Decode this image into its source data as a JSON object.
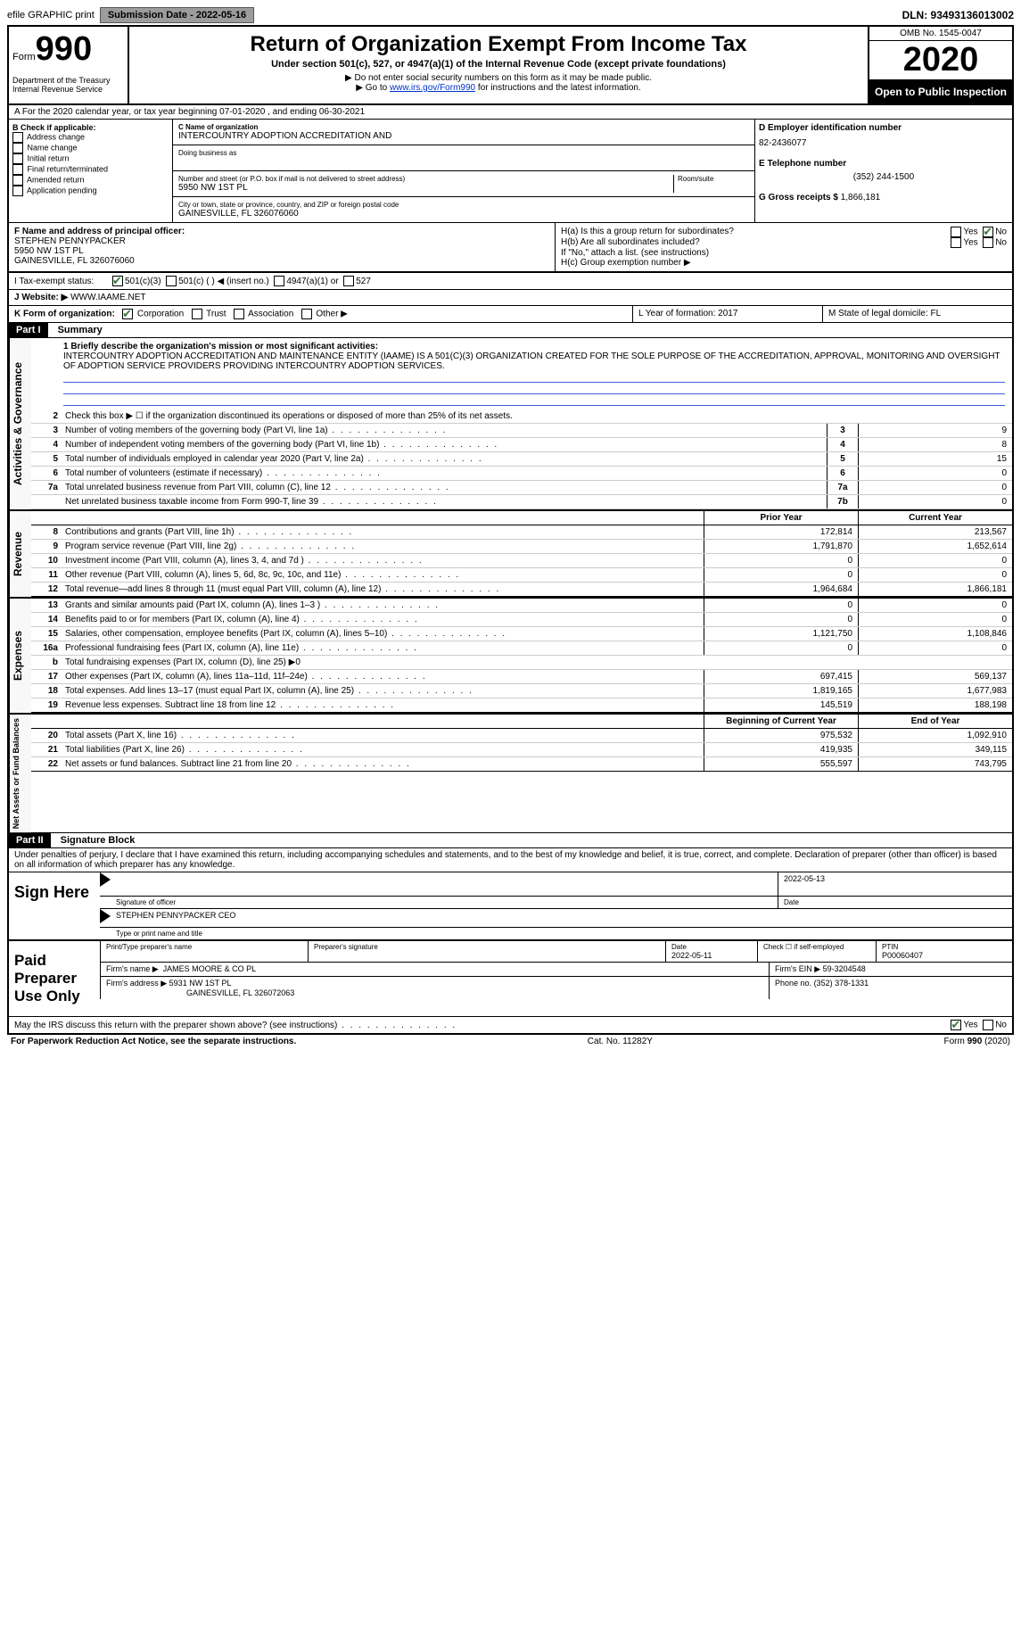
{
  "topbar": {
    "efile": "efile GRAPHIC print",
    "submission_label": "Submission Date - 2022-05-16",
    "dln_label": "DLN: 93493136013002"
  },
  "header": {
    "form_word": "Form",
    "form_number": "990",
    "dept1": "Department of the Treasury",
    "dept2": "Internal Revenue Service",
    "title": "Return of Organization Exempt From Income Tax",
    "subtitle": "Under section 501(c), 527, or 4947(a)(1) of the Internal Revenue Code (except private foundations)",
    "note1": "▶ Do not enter social security numbers on this form as it may be made public.",
    "note2_pre": "▶ Go to ",
    "note2_link": "www.irs.gov/Form990",
    "note2_post": " for instructions and the latest information.",
    "omb": "OMB No. 1545-0047",
    "year": "2020",
    "open_public": "Open to Public Inspection"
  },
  "row_a": "A For the 2020 calendar year, or tax year beginning 07-01-2020    , and ending 06-30-2021",
  "b": {
    "title": "B Check if applicable:",
    "items": [
      "Address change",
      "Name change",
      "Initial return",
      "Final return/terminated",
      "Amended return",
      "Application pending"
    ]
  },
  "c": {
    "name_label": "C Name of organization",
    "name": "INTERCOUNTRY ADOPTION ACCREDITATION AND",
    "dba_label": "Doing business as",
    "street_label": "Number and street (or P.O. box if mail is not delivered to street address)",
    "room_label": "Room/suite",
    "street": "5950 NW 1ST PL",
    "city_label": "City or town, state or province, country, and ZIP or foreign postal code",
    "city": "GAINESVILLE, FL  326076060"
  },
  "d": {
    "ein_label": "D Employer identification number",
    "ein": "82-2436077",
    "e_label": "E Telephone number",
    "phone": "(352) 244-1500",
    "g_label": "G Gross receipts $",
    "g_val": "1,866,181"
  },
  "f": {
    "label": "F  Name and address of principal officer:",
    "name": "STEPHEN PENNYPACKER",
    "addr1": "5950 NW 1ST PL",
    "addr2": "GAINESVILLE, FL  326076060"
  },
  "h": {
    "ha_label": "H(a)  Is this a group return for subordinates?",
    "hb_label": "H(b)  Are all subordinates included?",
    "hb_note": "If \"No,\" attach a list. (see instructions)",
    "hc_label": "H(c)  Group exemption number ▶",
    "yes": "Yes",
    "no": "No"
  },
  "i": {
    "label": "I  Tax-exempt status:",
    "opts": [
      "501(c)(3)",
      "501(c) (  ) ◀ (insert no.)",
      "4947(a)(1) or",
      "527"
    ]
  },
  "j": {
    "label": "J  Website: ▶",
    "val": "WWW.IAAME.NET"
  },
  "k": {
    "label": "K Form of organization:",
    "opts": [
      "Corporation",
      "Trust",
      "Association",
      "Other ▶"
    ]
  },
  "l": {
    "label": "L Year of formation: 2017",
    "m": "M State of legal domicile: FL"
  },
  "part1": {
    "label": "Part I",
    "title": "Summary",
    "mission_label": "1  Briefly describe the organization's mission or most significant activities:",
    "mission": "INTERCOUNTRY ADOPTION ACCREDITATION AND MAINTENANCE ENTITY (IAAME) IS A 501(C)(3) ORGANIZATION CREATED FOR THE SOLE PURPOSE OF THE ACCREDITATION, APPROVAL, MONITORING AND OVERSIGHT OF ADOPTION SERVICE PROVIDERS PROVIDING INTERCOUNTRY ADOPTION SERVICES.",
    "line2": "Check this box ▶ ☐ if the organization discontinued its operations or disposed of more than 25% of its net assets.",
    "gov_lines": [
      {
        "n": "3",
        "t": "Number of voting members of the governing body (Part VI, line 1a)",
        "box": "3",
        "v": "9"
      },
      {
        "n": "4",
        "t": "Number of independent voting members of the governing body (Part VI, line 1b)",
        "box": "4",
        "v": "8"
      },
      {
        "n": "5",
        "t": "Total number of individuals employed in calendar year 2020 (Part V, line 2a)",
        "box": "5",
        "v": "15"
      },
      {
        "n": "6",
        "t": "Total number of volunteers (estimate if necessary)",
        "box": "6",
        "v": "0"
      },
      {
        "n": "7a",
        "t": "Total unrelated business revenue from Part VIII, column (C), line 12",
        "box": "7a",
        "v": "0"
      },
      {
        "n": "",
        "t": "Net unrelated business taxable income from Form 990-T, line 39",
        "box": "7b",
        "v": "0"
      }
    ],
    "col_headers": {
      "prior": "Prior Year",
      "current": "Current Year"
    },
    "revenue": [
      {
        "n": "8",
        "t": "Contributions and grants (Part VIII, line 1h)",
        "p": "172,814",
        "c": "213,567"
      },
      {
        "n": "9",
        "t": "Program service revenue (Part VIII, line 2g)",
        "p": "1,791,870",
        "c": "1,652,614"
      },
      {
        "n": "10",
        "t": "Investment income (Part VIII, column (A), lines 3, 4, and 7d )",
        "p": "0",
        "c": "0"
      },
      {
        "n": "11",
        "t": "Other revenue (Part VIII, column (A), lines 5, 6d, 8c, 9c, 10c, and 11e)",
        "p": "0",
        "c": "0"
      },
      {
        "n": "12",
        "t": "Total revenue—add lines 8 through 11 (must equal Part VIII, column (A), line 12)",
        "p": "1,964,684",
        "c": "1,866,181"
      }
    ],
    "expenses": [
      {
        "n": "13",
        "t": "Grants and similar amounts paid (Part IX, column (A), lines 1–3 )",
        "p": "0",
        "c": "0"
      },
      {
        "n": "14",
        "t": "Benefits paid to or for members (Part IX, column (A), line 4)",
        "p": "0",
        "c": "0"
      },
      {
        "n": "15",
        "t": "Salaries, other compensation, employee benefits (Part IX, column (A), lines 5–10)",
        "p": "1,121,750",
        "c": "1,108,846"
      },
      {
        "n": "16a",
        "t": "Professional fundraising fees (Part IX, column (A), line 11e)",
        "p": "0",
        "c": "0"
      },
      {
        "n": "b",
        "t": "Total fundraising expenses (Part IX, column (D), line 25) ▶0",
        "p": "",
        "c": ""
      },
      {
        "n": "17",
        "t": "Other expenses (Part IX, column (A), lines 11a–11d, 11f–24e)",
        "p": "697,415",
        "c": "569,137"
      },
      {
        "n": "18",
        "t": "Total expenses. Add lines 13–17 (must equal Part IX, column (A), line 25)",
        "p": "1,819,165",
        "c": "1,677,983"
      },
      {
        "n": "19",
        "t": "Revenue less expenses. Subtract line 18 from line 12",
        "p": "145,519",
        "c": "188,198"
      }
    ],
    "net_headers": {
      "begin": "Beginning of Current Year",
      "end": "End of Year"
    },
    "net": [
      {
        "n": "20",
        "t": "Total assets (Part X, line 16)",
        "p": "975,532",
        "c": "1,092,910"
      },
      {
        "n": "21",
        "t": "Total liabilities (Part X, line 26)",
        "p": "419,935",
        "c": "349,115"
      },
      {
        "n": "22",
        "t": "Net assets or fund balances. Subtract line 21 from line 20",
        "p": "555,597",
        "c": "743,795"
      }
    ]
  },
  "side_labels": {
    "gov": "Activities & Governance",
    "rev": "Revenue",
    "exp": "Expenses",
    "net": "Net Assets or Fund Balances"
  },
  "part2": {
    "label": "Part II",
    "title": "Signature Block",
    "perjury": "Under penalties of perjury, I declare that I have examined this return, including accompanying schedules and statements, and to the best of my knowledge and belief, it is true, correct, and complete. Declaration of preparer (other than officer) is based on all information of which preparer has any knowledge.",
    "sign_here": "Sign Here",
    "sig_officer": "Signature of officer",
    "sig_date": "2022-05-13",
    "date_label": "Date",
    "officer_name": "STEPHEN PENNYPACKER CEO",
    "type_name": "Type or print name and title",
    "paid_label": "Paid Preparer Use Only",
    "prep_name_label": "Print/Type preparer's name",
    "prep_sig_label": "Preparer's signature",
    "prep_date_label": "Date",
    "prep_date": "2022-05-11",
    "self_employed": "Check ☐ if self-employed",
    "ptin_label": "PTIN",
    "ptin": "P00060407",
    "firm_name_label": "Firm's name      ▶",
    "firm_name": "JAMES MOORE & CO PL",
    "firm_ein_label": "Firm's EIN ▶",
    "firm_ein": "59-3204548",
    "firm_addr_label": "Firm's address ▶",
    "firm_addr": "5931 NW 1ST PL",
    "firm_city": "GAINESVILLE, FL  326072063",
    "phone_label": "Phone no.",
    "phone": "(352) 378-1331",
    "discuss": "May the IRS discuss this return with the preparer shown above? (see instructions)",
    "yes": "Yes",
    "no": "No"
  },
  "footer": {
    "left": "For Paperwork Reduction Act Notice, see the separate instructions.",
    "mid": "Cat. No. 11282Y",
    "right_form": "Form 990 (2020)"
  }
}
